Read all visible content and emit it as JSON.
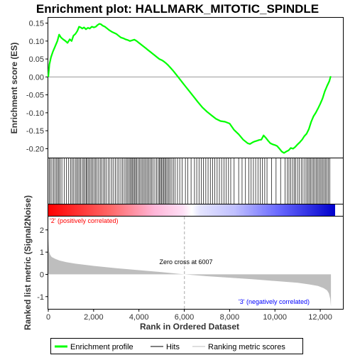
{
  "chart_data": {
    "type": "line",
    "title": "Enrichment plot: HALLMARK_MITOTIC_SPINDLE",
    "top_panel": {
      "ylabel": "Enrichment score (ES)",
      "ylim": [
        -0.225,
        0.165
      ],
      "yticks": [
        0.15,
        0.1,
        0.05,
        0.0,
        -0.05,
        -0.1,
        -0.15,
        -0.2
      ],
      "ytick_labels": [
        "0.15",
        "0.10",
        "0.05",
        "0.00",
        "-0.05",
        "-0.10",
        "-0.15",
        "-0.20"
      ],
      "series": [
        {
          "name": "Enrichment profile",
          "color": "#00ff00",
          "x": [
            0,
            50,
            120,
            200,
            300,
            400,
            480,
            560,
            650,
            760,
            850,
            950,
            1030,
            1110,
            1200,
            1280,
            1360,
            1430,
            1500,
            1580,
            1660,
            1750,
            1830,
            1920,
            2010,
            2100,
            2180,
            2250,
            2320,
            2400,
            2500,
            2600,
            2700,
            2800,
            2900,
            3000,
            3100,
            3200,
            3300,
            3400,
            3500,
            3600,
            3700,
            3800,
            3900,
            4000,
            4100,
            4200,
            4300,
            4400,
            4500,
            4600,
            4700,
            4800,
            4900,
            5000,
            5100,
            5200,
            5300,
            5400,
            5500,
            5600,
            5700,
            5800,
            5900,
            6000,
            6200,
            6400,
            6600,
            6800,
            7000,
            7200,
            7400,
            7600,
            7800,
            8000,
            8200,
            8400,
            8600,
            8800,
            8900,
            9000,
            9100,
            9200,
            9300,
            9400,
            9500,
            9600,
            9700,
            9800,
            9900,
            10000,
            10100,
            10200,
            10300,
            10400,
            10500,
            10600,
            10700,
            10800,
            10900,
            11000,
            11100,
            11200,
            11300,
            11400,
            11500,
            11600,
            11700,
            11800,
            11900,
            12000,
            12100,
            12200,
            12300,
            12400,
            12460
          ],
          "y": [
            0.0,
            0.035,
            0.055,
            0.07,
            0.085,
            0.1,
            0.118,
            0.11,
            0.105,
            0.1,
            0.095,
            0.105,
            0.1,
            0.115,
            0.12,
            0.128,
            0.14,
            0.138,
            0.135,
            0.138,
            0.133,
            0.137,
            0.135,
            0.14,
            0.138,
            0.14,
            0.145,
            0.148,
            0.147,
            0.143,
            0.14,
            0.135,
            0.13,
            0.126,
            0.123,
            0.12,
            0.115,
            0.11,
            0.108,
            0.105,
            0.103,
            0.1,
            0.102,
            0.104,
            0.1,
            0.095,
            0.09,
            0.085,
            0.08,
            0.075,
            0.07,
            0.065,
            0.06,
            0.055,
            0.05,
            0.047,
            0.043,
            0.038,
            0.032,
            0.025,
            0.018,
            0.01,
            0.002,
            -0.006,
            -0.014,
            -0.022,
            -0.038,
            -0.054,
            -0.07,
            -0.085,
            -0.097,
            -0.107,
            -0.117,
            -0.123,
            -0.125,
            -0.13,
            -0.148,
            -0.16,
            -0.175,
            -0.185,
            -0.187,
            -0.183,
            -0.18,
            -0.178,
            -0.176,
            -0.175,
            -0.163,
            -0.17,
            -0.178,
            -0.185,
            -0.188,
            -0.19,
            -0.193,
            -0.2,
            -0.208,
            -0.212,
            -0.208,
            -0.205,
            -0.198,
            -0.2,
            -0.195,
            -0.188,
            -0.182,
            -0.175,
            -0.165,
            -0.158,
            -0.145,
            -0.125,
            -0.11,
            -0.1,
            -0.088,
            -0.075,
            -0.06,
            -0.04,
            -0.025,
            -0.012,
            0.002
          ]
        }
      ]
    },
    "hits_panel": {
      "legend_label": "Hits",
      "hit_positions": [
        40,
        95,
        160,
        230,
        300,
        360,
        420,
        470,
        530,
        600,
        700,
        800,
        900,
        980,
        1050,
        1120,
        1190,
        1250,
        1310,
        1370,
        1430,
        1500,
        1560,
        1620,
        1680,
        1720,
        1780,
        1840,
        1900,
        1960,
        2020,
        2080,
        2150,
        2220,
        2290,
        2350,
        2420,
        2490,
        2560,
        2640,
        2720,
        2800,
        2880,
        2960,
        3040,
        3120,
        3200,
        3280,
        3350,
        3420,
        3480,
        3540,
        3600,
        3650,
        3700,
        3750,
        3800,
        3850,
        3900,
        3960,
        4020,
        4080,
        4140,
        4200,
        4260,
        4320,
        4380,
        4440,
        4500,
        4560,
        4620,
        4700,
        4780,
        4850,
        4900,
        4950,
        5000,
        5050,
        5100,
        5150,
        5200,
        5260,
        5320,
        5380,
        5450,
        5520,
        5600,
        5700,
        5800,
        5900,
        6050,
        6150,
        6300,
        6450,
        6550,
        6650,
        6750,
        6850,
        6950,
        7050,
        7150,
        7250,
        7350,
        7450,
        7550,
        7650,
        7750,
        7850,
        7950,
        8050,
        8200,
        8400,
        8550,
        8700,
        8850,
        8950,
        9050,
        9150,
        9250,
        9350,
        9450,
        9550,
        9650,
        9850,
        10050,
        10250,
        10450,
        10550,
        10620,
        10700,
        10780,
        10850,
        10920,
        11000,
        11080,
        11160,
        11240,
        11320,
        11400,
        11460,
        11520,
        11580,
        11640,
        11700,
        11760,
        11820,
        11880,
        11940,
        12000,
        12060,
        12120,
        12180,
        12240,
        12300,
        12360,
        12420
      ]
    },
    "bottom_panel": {
      "ylabel": "Ranked list metric (Signal2Noise)",
      "xlabel": "Rank in Ordered Dataset",
      "xlim": [
        0,
        13000
      ],
      "ylim": [
        -1.55,
        2.6
      ],
      "xticks": [
        0,
        2000,
        4000,
        6000,
        8000,
        10000,
        12000
      ],
      "xtick_labels": [
        "0",
        "2,000",
        "4,000",
        "6,000",
        "8,000",
        "10,000",
        "12,000"
      ],
      "yticks": [
        2,
        1,
        0,
        -1
      ],
      "ytick_labels": [
        "2",
        "1",
        "0",
        "-1"
      ],
      "metric_x": [
        0,
        30,
        80,
        150,
        300,
        500,
        800,
        1200,
        2000,
        3000,
        4000,
        5000,
        6007,
        7000,
        8000,
        9000,
        10000,
        11000,
        11500,
        11900,
        12150,
        12300,
        12380,
        12440,
        12470
      ],
      "metric_y": [
        1.6,
        1.05,
        0.88,
        0.78,
        0.7,
        0.62,
        0.55,
        0.48,
        0.38,
        0.28,
        0.19,
        0.1,
        0.0,
        -0.08,
        -0.15,
        -0.22,
        -0.3,
        -0.38,
        -0.45,
        -0.52,
        -0.62,
        -0.72,
        -0.85,
        -1.1,
        -1.45
      ],
      "zero_cross_label": "Zero cross at 6007",
      "zero_cross_x": 6007,
      "positive_label": "'2' (positively correlated)",
      "negative_label": "'3' (negatively correlated)",
      "positive_color": "#ff0000",
      "negative_color": "#0000ff",
      "metric_fill_color": "#bebebe"
    },
    "legend": {
      "placement": "bottom",
      "items": [
        {
          "label": "Enrichment profile",
          "color": "#00ff00"
        },
        {
          "label": "Hits",
          "color": "#000000"
        },
        {
          "label": "Ranking metric scores",
          "color": "#bebebe"
        }
      ]
    }
  }
}
